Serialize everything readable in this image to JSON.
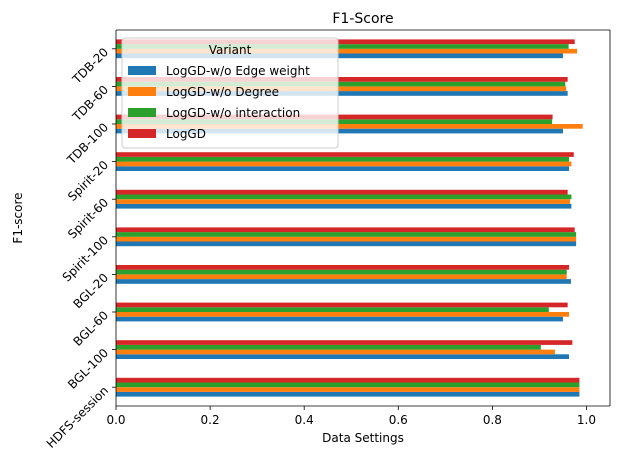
{
  "chart_data": {
    "type": "bar",
    "orientation": "horizontal",
    "title": "F1-Score",
    "xlabel": "Data Settings",
    "ylabel": "F1-score",
    "xlim": [
      0,
      1.05
    ],
    "xticks": [
      0.0,
      0.2,
      0.4,
      0.6,
      0.8,
      1.0
    ],
    "xtick_labels": [
      "0.0",
      "0.2",
      "0.4",
      "0.6",
      "0.8",
      "1.0"
    ],
    "categories": [
      "HDFS-session",
      "BGL-100",
      "BGL-60",
      "BGL-20",
      "Spirit-100",
      "Spirit-60",
      "Spirit-20",
      "TDB-100",
      "TDB-60",
      "TDB-20"
    ],
    "legend": {
      "title": "Variant",
      "position": "top-left"
    },
    "grid": false,
    "series": [
      {
        "name": "LogGD-w/o Edge weight",
        "color": "#1f77b4",
        "values": [
          0.985,
          0.963,
          0.95,
          0.967,
          0.978,
          0.968,
          0.963,
          0.95,
          0.96,
          0.95
        ]
      },
      {
        "name": "LogGD-w/o Degree",
        "color": "#ff7f0e",
        "values": [
          0.985,
          0.933,
          0.963,
          0.958,
          0.978,
          0.965,
          0.968,
          0.992,
          0.957,
          0.98
        ]
      },
      {
        "name": "LogGD-w/o interaction",
        "color": "#2ca02c",
        "values": [
          0.985,
          0.903,
          0.92,
          0.958,
          0.978,
          0.968,
          0.963,
          0.927,
          0.955,
          0.962
        ]
      },
      {
        "name": "LogGD",
        "color": "#d62728",
        "values": [
          0.985,
          0.97,
          0.96,
          0.963,
          0.975,
          0.96,
          0.973,
          0.928,
          0.96,
          0.975
        ]
      }
    ]
  }
}
